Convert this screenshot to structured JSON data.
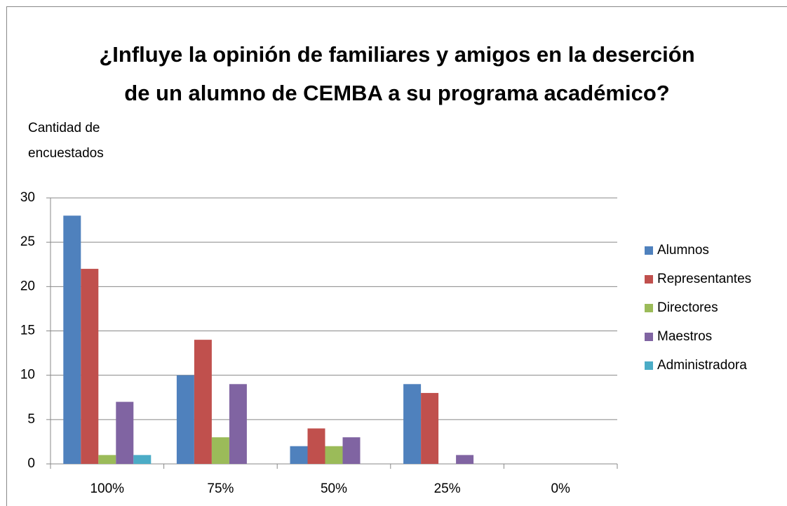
{
  "chart_data": {
    "type": "bar",
    "title": "¿Influye la opinión de familiares y amigos en la deserción de un alumno de CEMBA a su programa académico?",
    "ylabel": "Cantidad de encuestados",
    "categories": [
      "100%",
      "75%",
      "50%",
      "25%",
      "0%"
    ],
    "series": [
      {
        "name": "Alumnos",
        "color": "#4f81bd",
        "values": [
          28,
          10,
          2,
          9,
          0
        ]
      },
      {
        "name": "Representantes",
        "color": "#c0504d",
        "values": [
          22,
          14,
          4,
          8,
          0
        ]
      },
      {
        "name": "Directores",
        "color": "#9bbb59",
        "values": [
          1,
          3,
          2,
          0,
          0
        ]
      },
      {
        "name": "Maestros",
        "color": "#8064a2",
        "values": [
          7,
          9,
          3,
          1,
          0
        ]
      },
      {
        "name": "Administradora",
        "color": "#4bacc6",
        "values": [
          1,
          0,
          0,
          0,
          0
        ]
      }
    ],
    "ylim": [
      0,
      30
    ],
    "yticks": [
      0,
      5,
      10,
      15,
      20,
      25,
      30
    ],
    "grid": true,
    "legend": "right"
  }
}
